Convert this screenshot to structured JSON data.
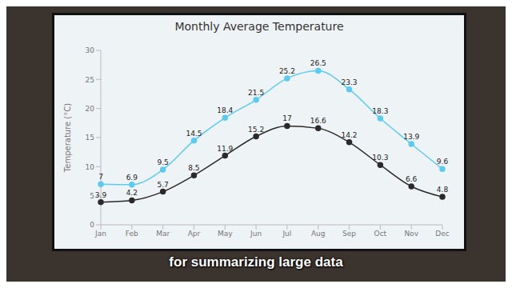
{
  "chart_data": {
    "type": "line",
    "title": "Monthly Average Temperature",
    "ylabel": "Temperature (°C)",
    "annotation": "for summarizing large data",
    "categories": [
      "Jan",
      "Feb",
      "Mar",
      "Apr",
      "May",
      "Jun",
      "Jul",
      "Aug",
      "Sep",
      "Oct",
      "Nov",
      "Dec"
    ],
    "series": [
      {
        "color": "#5ccbf2",
        "marker": "circle",
        "line_style": "solid",
        "values": [
          7,
          6.9,
          9.5,
          14.5,
          18.4,
          21.5,
          25.2,
          26.5,
          23.3,
          18.3,
          13.9,
          9.6
        ]
      },
      {
        "color": "#2a2a2a",
        "marker": "circle",
        "line_style": "solid",
        "values": [
          3.9,
          4.2,
          5.7,
          8.5,
          11.9,
          15.2,
          17,
          16.6,
          14.2,
          10.3,
          6.6,
          4.8
        ]
      }
    ],
    "ylim": [
      0,
      30
    ],
    "yticks": [
      0,
      5,
      10,
      15,
      20,
      25,
      30
    ],
    "grid": false,
    "data_labels": true
  }
}
